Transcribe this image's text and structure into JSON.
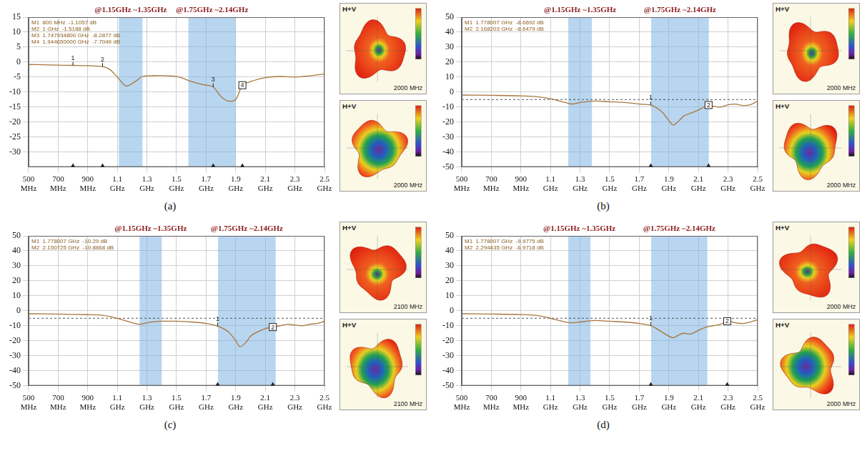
{
  "chart_data": [
    {
      "type": "line",
      "panel": "(a)",
      "color": "#a8763e",
      "grid": true,
      "xlim": [
        0.5,
        2.5
      ],
      "xticks": [
        {
          "value": 0.5,
          "label": "500 MHz"
        },
        {
          "value": 0.7,
          "label": "700 MHz"
        },
        {
          "value": 0.9,
          "label": "900 MHz"
        },
        {
          "value": 1.1,
          "label": "1.1 GHz"
        },
        {
          "value": 1.3,
          "label": "1.3 GHz"
        },
        {
          "value": 1.5,
          "label": "1.5 GHz"
        },
        {
          "value": 1.7,
          "label": "1.7 GHz"
        },
        {
          "value": 1.9,
          "label": "1.9 GHz"
        },
        {
          "value": 2.1,
          "label": "2.1 GHz"
        },
        {
          "value": 2.3,
          "label": "2.3 GHz"
        },
        {
          "value": 2.5,
          "label": "2.5 GHz"
        }
      ],
      "ylim": [
        -35,
        15
      ],
      "yticks": [
        -30,
        -25,
        -20,
        -15,
        -10,
        -5,
        0,
        5,
        10,
        15
      ],
      "x": [
        0.5,
        0.6,
        0.7,
        0.8,
        0.9,
        1.0,
        1.05,
        1.1,
        1.16,
        1.22,
        1.27,
        1.35,
        1.45,
        1.52,
        1.6,
        1.68,
        1.748,
        1.8,
        1.85,
        1.9,
        1.945,
        2.0,
        2.1,
        2.2,
        2.3,
        2.4,
        2.5
      ],
      "values": [
        -0.8,
        -0.9,
        -1.0,
        -1.1,
        -1.2,
        -1.5,
        -2.5,
        -5.0,
        -8.0,
        -6.5,
        -4.8,
        -4.5,
        -4.6,
        -5.0,
        -6.5,
        -7.5,
        -8.3,
        -11.5,
        -13.0,
        -12.5,
        -7.7,
        -6.5,
        -5.2,
        -4.8,
        -5.0,
        -4.6,
        -4.0
      ],
      "annotations": [
        {
          "text": "@1.15GHz ~1.35GHz",
          "band": [
            1.11,
            1.27
          ]
        },
        {
          "text": "@1.75GHz ~2.14GHz",
          "band": [
            1.58,
            1.9
          ]
        }
      ],
      "markers": [
        {
          "label": "1",
          "x": 0.8,
          "y": -1.1057,
          "readout": "M1  800 MHz  -1.1057 dB"
        },
        {
          "label": "2",
          "x": 1.0,
          "y": -1.5188,
          "readout": "M2  1 GHz  -1.5188 dB"
        },
        {
          "label": "3",
          "x": 1.748,
          "y": -8.2877,
          "readout": "M3  1.747934800 GHz  -8.2877 dB"
        },
        {
          "label": "4",
          "x": 1.945,
          "y": -7.7049,
          "readout": "M4  1.944650000 GHz  -7.7049 dB",
          "marker": "square"
        }
      ],
      "patterns": [
        {
          "label": "H+V",
          "frequency": "2000 MHz"
        },
        {
          "label": "H+V",
          "frequency": "2000 MHz"
        }
      ]
    },
    {
      "type": "line",
      "panel": "(b)",
      "color": "#a8763e",
      "grid": true,
      "xlim": [
        0.5,
        2.5
      ],
      "xticks": [
        {
          "value": 0.5,
          "label": "500 MHz"
        },
        {
          "value": 0.7,
          "label": "700 MHz"
        },
        {
          "value": 0.9,
          "label": "900 MHz"
        },
        {
          "value": 1.1,
          "label": "1.1 GHz"
        },
        {
          "value": 1.3,
          "label": "1.3 GHz"
        },
        {
          "value": 1.5,
          "label": "1.5 GHz"
        },
        {
          "value": 1.7,
          "label": "1.7 GHz"
        },
        {
          "value": 1.9,
          "label": "1.9 GHz"
        },
        {
          "value": 2.1,
          "label": "2.1 GHz"
        },
        {
          "value": 2.3,
          "label": "2.3 GHz"
        },
        {
          "value": 2.5,
          "label": "2.5 GHz"
        }
      ],
      "ylim": [
        -50,
        50
      ],
      "yticks": [
        -50,
        -40,
        -30,
        -20,
        -10,
        0,
        10,
        20,
        30,
        40,
        50
      ],
      "x": [
        0.5,
        0.7,
        0.9,
        1.0,
        1.1,
        1.2,
        1.25,
        1.3,
        1.4,
        1.5,
        1.6,
        1.7,
        1.778,
        1.85,
        1.9,
        1.93,
        1.97,
        2.0,
        2.05,
        2.1,
        2.168,
        2.2,
        2.25,
        2.3,
        2.35,
        2.4,
        2.45,
        2.5
      ],
      "values": [
        -2,
        -2.2,
        -2.5,
        -3,
        -4.5,
        -7,
        -8,
        -7,
        -6,
        -6.5,
        -7,
        -8,
        -8.6692,
        -13,
        -19,
        -22,
        -19,
        -16,
        -14,
        -12,
        -8.6479,
        -9.5,
        -10,
        -8.5,
        -8,
        -9,
        -8.5,
        -6
      ],
      "reference_line": -5,
      "annotations": [
        {
          "text": "@1.15GHz ~1.35GHz",
          "band": [
            1.22,
            1.38
          ]
        },
        {
          "text": "@1.75GHz ~2.14GHz",
          "band": [
            1.78,
            2.17
          ]
        }
      ],
      "markers": [
        {
          "label": "1",
          "x": 1.778007,
          "y": -8.6692,
          "readout": "M1  1.778007 GHz  -8.6692 dB"
        },
        {
          "label": "2",
          "x": 2.168203,
          "y": -8.6479,
          "readout": "M2  2.168203 GHz  -8.6479 dB",
          "marker": "square"
        }
      ],
      "patterns": [
        {
          "label": "H+V",
          "frequency": "2000 MHz"
        },
        {
          "label": "H+V",
          "frequency": "2000 MHz"
        }
      ]
    },
    {
      "type": "line",
      "panel": "(c)",
      "color": "#a8763e",
      "grid": true,
      "xlim": [
        0.5,
        2.5
      ],
      "xticks": [
        {
          "value": 0.5,
          "label": "500 MHz"
        },
        {
          "value": 0.7,
          "label": "700 MHz"
        },
        {
          "value": 0.9,
          "label": "900 MHz"
        },
        {
          "value": 1.1,
          "label": "1.1 GHz"
        },
        {
          "value": 1.3,
          "label": "1.3 GHz"
        },
        {
          "value": 1.5,
          "label": "1.5 GHz"
        },
        {
          "value": 1.7,
          "label": "1.7 GHz"
        },
        {
          "value": 1.9,
          "label": "1.9 GHz"
        },
        {
          "value": 2.1,
          "label": "2.1 GHz"
        },
        {
          "value": 2.3,
          "label": "2.3 GHz"
        },
        {
          "value": 2.5,
          "label": "2.5 GHz"
        }
      ],
      "ylim": [
        -50,
        50
      ],
      "yticks": [
        -50,
        -40,
        -30,
        -20,
        -10,
        0,
        10,
        20,
        30,
        40,
        50
      ],
      "x": [
        0.5,
        0.7,
        0.9,
        1.0,
        1.1,
        1.2,
        1.25,
        1.3,
        1.4,
        1.5,
        1.6,
        1.7,
        1.778,
        1.85,
        1.9,
        1.93,
        1.97,
        2.0,
        2.05,
        2.1,
        2.15,
        2.2,
        2.25,
        2.3,
        2.35,
        2.4,
        2.45,
        2.5
      ],
      "values": [
        -2,
        -2.2,
        -2.6,
        -3,
        -5,
        -8,
        -9,
        -8,
        -7,
        -7,
        -7.5,
        -8.5,
        -10.29,
        -14,
        -20,
        -24,
        -21,
        -17,
        -14,
        -12,
        -10.8868,
        -10,
        -9,
        -9.5,
        -10,
        -9,
        -8.5,
        -7
      ],
      "reference_line": -5,
      "annotations": [
        {
          "text": "@1.15GHz ~1.35GHz",
          "band": [
            1.25,
            1.4
          ]
        },
        {
          "text": "@1.75GHz ~2.14GHz",
          "band": [
            1.78,
            2.17
          ]
        }
      ],
      "markers": [
        {
          "label": "1",
          "x": 1.778007,
          "y": -10.29,
          "readout": "M1  1.778007 GHz  -10.29 dB"
        },
        {
          "label": "2",
          "x": 2.150725,
          "y": -10.8868,
          "readout": "M2  2.150725 GHz  -10.8868 dB",
          "marker": "square"
        }
      ],
      "patterns": [
        {
          "label": "H+V",
          "frequency": "2100 MHz"
        },
        {
          "label": "H+V",
          "frequency": "2100 MHz"
        }
      ]
    },
    {
      "type": "line",
      "panel": "(d)",
      "color": "#a8763e",
      "grid": true,
      "xlim": [
        0.5,
        2.5
      ],
      "xticks": [
        {
          "value": 0.5,
          "label": "500 MHz"
        },
        {
          "value": 0.7,
          "label": "700 MHz"
        },
        {
          "value": 0.9,
          "label": "900 MHz"
        },
        {
          "value": 1.1,
          "label": "1.1 GHz"
        },
        {
          "value": 1.3,
          "label": "1.3 GHz"
        },
        {
          "value": 1.5,
          "label": "1.5 GHz"
        },
        {
          "value": 1.7,
          "label": "1.7 GHz"
        },
        {
          "value": 1.9,
          "label": "1.9 GHz"
        },
        {
          "value": 2.1,
          "label": "2.1 GHz"
        },
        {
          "value": 2.3,
          "label": "2.3 GHz"
        },
        {
          "value": 2.5,
          "label": "2.5 GHz"
        }
      ],
      "ylim": [
        -50,
        50
      ],
      "yticks": [
        -50,
        -40,
        -30,
        -20,
        -10,
        0,
        10,
        20,
        30,
        40,
        50
      ],
      "x": [
        0.5,
        0.7,
        0.9,
        1.0,
        1.1,
        1.2,
        1.25,
        1.3,
        1.4,
        1.5,
        1.6,
        1.7,
        1.778,
        1.85,
        1.9,
        1.93,
        1.97,
        2.0,
        2.05,
        2.1,
        2.15,
        2.2,
        2.25,
        2.294,
        2.35,
        2.4,
        2.45,
        2.5
      ],
      "values": [
        -2,
        -2.2,
        -2.5,
        -3,
        -5,
        -7.5,
        -8,
        -7.5,
        -6.5,
        -7,
        -7.5,
        -8.5,
        -9.9775,
        -14,
        -17,
        -18,
        -16,
        -15,
        -15.5,
        -13,
        -11,
        -10,
        -9,
        -6.9718,
        -8,
        -8.5,
        -7.5,
        -6
      ],
      "reference_line": -5,
      "annotations": [
        {
          "text": "@1.15GHz ~1.35GHz",
          "band": [
            1.22,
            1.37
          ]
        },
        {
          "text": "@1.75GHz ~2.14GHz",
          "band": [
            1.78,
            2.16
          ]
        }
      ],
      "markers": [
        {
          "label": "1",
          "x": 1.778007,
          "y": -9.9775,
          "readout": "M1  1.778007 GHz  -9.9775 dB"
        },
        {
          "label": "2",
          "x": 2.294435,
          "y": -6.9718,
          "readout": "M2  2.294435 GHz  -6.9718 dB",
          "marker": "square"
        }
      ],
      "patterns": [
        {
          "label": "H+V",
          "frequency": "2000 MHz"
        },
        {
          "label": "H+V",
          "frequency": "2000 MHz"
        }
      ]
    }
  ]
}
